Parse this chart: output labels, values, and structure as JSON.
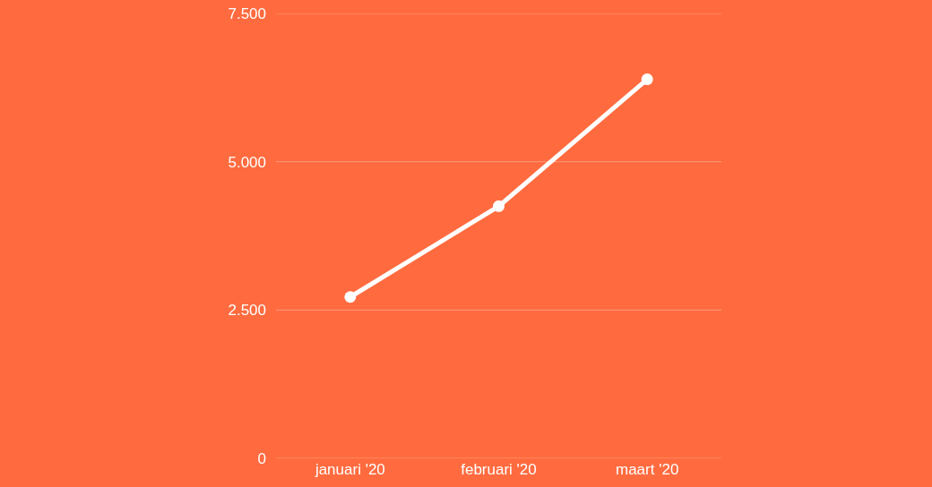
{
  "chart_data": {
    "type": "line",
    "categories": [
      "januari '20",
      "februari '20",
      "maart '20"
    ],
    "series": [
      {
        "color": "#ffffff",
        "values": [
          2720,
          4250,
          6390
        ]
      }
    ],
    "ylim": [
      0,
      7500
    ],
    "yticks": [
      0,
      {
        "value": 2500,
        "label": "2.500"
      },
      {
        "value": 5000,
        "label": "5.000"
      },
      {
        "value": 7500,
        "label": "7.500"
      }
    ],
    "grid": "y",
    "marker": "circle",
    "line_style": "solid"
  }
}
